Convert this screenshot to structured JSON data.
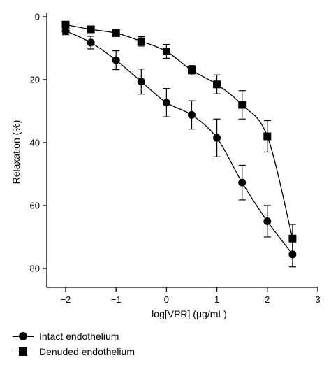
{
  "chart_data": {
    "type": "line",
    "title": "",
    "xlabel": "log[VPR] (μg/mL)",
    "ylabel": "Relaxation (%)",
    "xlim": [
      -2,
      3
    ],
    "ylim": [
      0,
      80
    ],
    "y_inverted": true,
    "xticks": [
      "−2",
      "−1",
      "0",
      "1",
      "2",
      "3"
    ],
    "yticks": [
      "0",
      "20",
      "40",
      "60",
      "80"
    ],
    "grid": false,
    "legend_position": "bottom-left",
    "series": [
      {
        "name": "Intact endothelium",
        "marker": "circle",
        "x": [
          -2,
          -1.5,
          -1,
          -0.5,
          0,
          0.5,
          1,
          1.5,
          2,
          2.5
        ],
        "y": [
          4.5,
          8.2,
          13.8,
          20.6,
          27.3,
          31.2,
          38.5,
          52.7,
          65.0,
          75.5
        ],
        "err": [
          1.2,
          2.0,
          3.0,
          4.0,
          4.5,
          4.5,
          6.0,
          5.5,
          5.0,
          4.0
        ]
      },
      {
        "name": "Denuded endothelium",
        "marker": "square",
        "x": [
          -2,
          -1.5,
          -1,
          -0.5,
          0,
          0.5,
          1,
          1.5,
          2,
          2.5
        ],
        "y": [
          2.5,
          4.0,
          5.2,
          7.8,
          11.0,
          17.0,
          21.5,
          28.0,
          38.0,
          70.5
        ],
        "err": [
          1.0,
          1.0,
          1.0,
          1.5,
          2.2,
          1.5,
          3.0,
          4.5,
          5.0,
          4.5
        ]
      }
    ]
  }
}
